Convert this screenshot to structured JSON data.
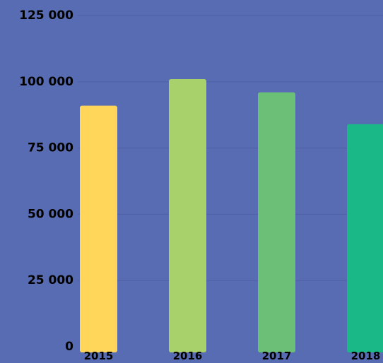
{
  "chart_data": {
    "type": "bar",
    "categories": [
      "2015",
      "2016",
      "2017",
      "2018"
    ],
    "values": [
      91000,
      101000,
      96000,
      84000
    ],
    "ylim": [
      0,
      125000
    ],
    "y_ticks": [
      {
        "value": 0,
        "label": "0"
      },
      {
        "value": 25000,
        "label": "25 000"
      },
      {
        "value": 50000,
        "label": "50 000"
      },
      {
        "value": 75000,
        "label": "75 000"
      },
      {
        "value": 100000,
        "label": "100 000"
      },
      {
        "value": 125000,
        "label": "125 000"
      }
    ],
    "bar_colors": [
      "#FFD659",
      "#A8D16B",
      "#6BBF77",
      "#1BB887"
    ],
    "background_color": "#586CB3",
    "gridline_color": "#4E61A6",
    "grid": true,
    "legend": "none"
  }
}
